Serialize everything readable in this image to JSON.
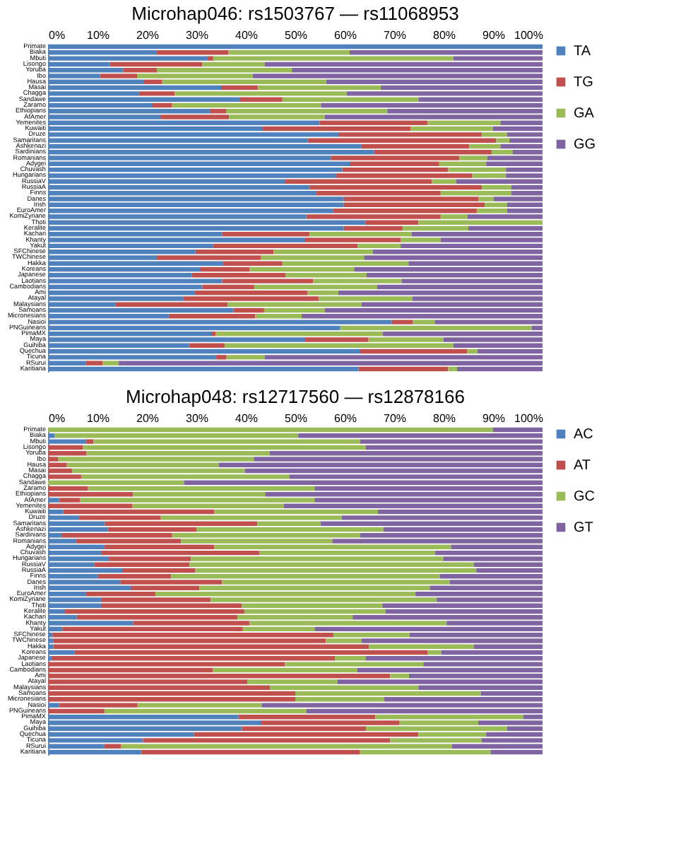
{
  "chart_data": [
    {
      "type": "bar",
      "orientation": "horizontal",
      "stacked": true,
      "title": "Microhap046: rs1503767 — rs11068953",
      "legend": "right",
      "grid": false,
      "categories": [
        "Primate",
        "Biaka",
        "Mbuti",
        "Lisongo",
        "Yoruba",
        "Ibo",
        "Hausa",
        "Masai",
        "Chagga",
        "Sandawe",
        "Zaramo",
        "Ethiopians",
        "AfAmer",
        "Yemenites",
        "Kuwaiti",
        "Druze",
        "Samaritans",
        "Ashkenazi",
        "Sardinians",
        "Romanians",
        "Adygei",
        "Chuvash",
        "Hungarians",
        "RussiaV",
        "RussiaA",
        "Finns",
        "Danes",
        "Irish",
        "EuroAmer",
        "KomiZyriane",
        "Thoti",
        "Keralite",
        "Kachari",
        "Khanty",
        "Yakut",
        "SFChinese",
        "TWChinese",
        "Hakka",
        "Koreans",
        "Japanese",
        "Laotians",
        "Cambodians",
        "Ami",
        "Atayal",
        "Malaysians",
        "Samoans",
        "Micronesians",
        "Nasioi",
        "PNGuineans",
        "PimaMX",
        "Maya",
        "Guihiba",
        "Quechua",
        "Ticuna",
        "RSurui",
        "Karitiana"
      ],
      "xlim": [
        0,
        100
      ],
      "xticks": [
        {
          "value": 0,
          "label": "0%"
        },
        {
          "value": 10,
          "label": "10%"
        },
        {
          "value": 20,
          "label": "20%"
        },
        {
          "value": 30,
          "label": "30%"
        },
        {
          "value": 40,
          "label": "40%"
        },
        {
          "value": 50,
          "label": "50%"
        },
        {
          "value": 60,
          "label": "60%"
        },
        {
          "value": 70,
          "label": "70%"
        },
        {
          "value": 80,
          "label": "80%"
        },
        {
          "value": 90,
          "label": "90%"
        },
        {
          "value": 100,
          "label": "100%"
        }
      ],
      "series": [
        {
          "name": "TA",
          "color": "#4f81bd",
          "values": [
            100,
            22,
            32.3,
            12.5,
            15.2,
            10.5,
            19.3,
            35,
            18.4,
            38.7,
            21,
            32.7,
            22.7,
            54.9,
            43.3,
            58.7,
            52.5,
            63.4,
            65.9,
            57.2,
            61,
            59.5,
            58.3,
            48,
            52.9,
            54.3,
            59.8,
            59.8,
            57.6,
            52.2,
            64.1,
            59.8,
            35.2,
            52,
            33.4,
            29.8,
            22,
            35.4,
            30.7,
            29.1,
            35.2,
            31.2,
            29.6,
            27.4,
            13.6,
            37.5,
            24.4,
            69.5,
            59,
            33,
            52,
            28.5,
            63,
            33.9,
            7.6,
            62.8
          ]
        },
        {
          "name": "TG",
          "color": "#c0504d",
          "values": [
            0,
            14.5,
            1.1,
            18.7,
            6.8,
            7.5,
            3.7,
            7.4,
            7.2,
            8.7,
            4,
            3.3,
            13.9,
            21.8,
            30,
            29,
            38.1,
            21.8,
            23.8,
            26,
            18.1,
            21.4,
            27.5,
            29.6,
            34.8,
            25.1,
            27.2,
            28.5,
            29.1,
            27.2,
            10.8,
            11.9,
            17.7,
            19.3,
            29.2,
            15.8,
            21,
            12,
            10.1,
            18.9,
            18.4,
            10.5,
            22.9,
            27.3,
            22.7,
            6.2,
            17.5,
            4.3,
            0,
            0.9,
            12.8,
            7.2,
            21.8,
            2.2,
            3.4,
            18.1
          ]
        },
        {
          "name": "GA",
          "color": "#9bbb59",
          "values": [
            0,
            24.5,
            48.6,
            12.6,
            27.3,
            23.4,
            33.3,
            24.9,
            34.8,
            27.5,
            30.2,
            32.6,
            19.4,
            14.8,
            16.7,
            5.1,
            2.7,
            6.3,
            4.3,
            5.6,
            9.5,
            11.7,
            6.8,
            4.9,
            6,
            14.3,
            3.1,
            4.5,
            6.1,
            5.4,
            25.1,
            13.3,
            20.6,
            8.1,
            8.7,
            20.1,
            20.9,
            25.5,
            21.1,
            16.4,
            17.9,
            24.8,
            6.2,
            19,
            27.1,
            12.3,
            9.4,
            4.4,
            38.8,
            33.8,
            15.2,
            46.3,
            2,
            7.7,
            3.3,
            1.8
          ]
        },
        {
          "name": "GG",
          "color": "#8064a2",
          "values": [
            0,
            39,
            18,
            56.2,
            50.7,
            58.6,
            43.7,
            32.7,
            39.6,
            25.1,
            44.8,
            31.4,
            44,
            8.5,
            10,
            7.2,
            6.7,
            8.5,
            6,
            11.2,
            11.4,
            7.4,
            7.4,
            17.5,
            6.3,
            6.3,
            9.9,
            7.2,
            7.2,
            15.2,
            0,
            15,
            26.5,
            20.6,
            28.7,
            34.3,
            36.1,
            27.1,
            38.1,
            35.6,
            28.5,
            33.5,
            41.3,
            26.3,
            36.6,
            44,
            48.7,
            21.8,
            2.2,
            32.3,
            20,
            18,
            13.2,
            56.2,
            85.7,
            17.3
          ]
        }
      ]
    },
    {
      "type": "bar",
      "orientation": "horizontal",
      "stacked": true,
      "title": "Microhap048: rs12717560 — rs12878166",
      "legend": "right",
      "grid": false,
      "categories": [
        "Primate",
        "Biaka",
        "Mbuti",
        "Lisongo",
        "Yoruba",
        "Ibo",
        "Hausa",
        "Masai",
        "Chagga",
        "Sandawe",
        "Zaramo",
        "Ethiopians",
        "AfAmer",
        "Yemenites",
        "Kuwaiti",
        "Druze",
        "Samaritans",
        "Ashkenazi",
        "Sardinians",
        "Romanians",
        "Adygei",
        "Chuvash",
        "Hungarians",
        "RussiaV",
        "RussiaA",
        "Finns",
        "Danes",
        "Irish",
        "EuroAmer",
        "KomiZyriane",
        "Thoti",
        "Keralite",
        "Kachari",
        "Khanty",
        "Yakut",
        "SFChinese",
        "TWChinese",
        "Hakka",
        "Koreans",
        "Japanese",
        "Laotians",
        "Cambodians",
        "Ami",
        "Atayal",
        "Malaysians",
        "Samoans",
        "Micronesians",
        "Nasioi",
        "PNGuineans",
        "PimaMX",
        "Maya",
        "Guihiba",
        "Quechua",
        "Ticuna",
        "RSurui",
        "Karitiana"
      ],
      "xlim": [
        0,
        100
      ],
      "xticks": [
        {
          "value": 0,
          "label": "0%"
        },
        {
          "value": 10,
          "label": "10%"
        },
        {
          "value": 20,
          "label": "20%"
        },
        {
          "value": 30,
          "label": "30%"
        },
        {
          "value": 40,
          "label": "40%"
        },
        {
          "value": 50,
          "label": "50%"
        },
        {
          "value": 60,
          "label": "60%"
        },
        {
          "value": 70,
          "label": "70%"
        },
        {
          "value": 80,
          "label": "80%"
        },
        {
          "value": 90,
          "label": "90%"
        },
        {
          "value": 100,
          "label": "100%"
        }
      ],
      "series": [
        {
          "name": "AC",
          "color": "#4f81bd",
          "values": [
            0,
            1.3,
            7.6,
            0,
            0,
            0,
            0,
            0,
            0,
            0,
            0,
            0,
            2.2,
            0,
            3.1,
            6.3,
            11.5,
            12.1,
            2.7,
            5.6,
            11.4,
            10.7,
            12.3,
            9.4,
            15,
            10.1,
            14.6,
            16.7,
            7.6,
            10.7,
            10.7,
            3.3,
            5.8,
            17.2,
            2.9,
            0.9,
            1.1,
            1.1,
            5.4,
            0.7,
            0,
            0,
            0,
            0,
            0,
            0,
            0,
            2.2,
            0,
            38.5,
            43,
            39.2,
            29.5,
            19.2,
            11.4,
            18.8
          ]
        },
        {
          "name": "AT",
          "color": "#c0504d",
          "values": [
            0,
            0,
            1.6,
            7,
            7.8,
            2,
            3.8,
            4.9,
            6.7,
            0,
            8.1,
            17.2,
            4.3,
            17,
            30.5,
            16.5,
            30.8,
            17.9,
            22.4,
            21.3,
            22.2,
            32,
            16.6,
            19.2,
            14.8,
            14.8,
            20.6,
            13.9,
            14.1,
            22.2,
            28.5,
            36.4,
            32.5,
            23.5,
            36.5,
            56.8,
            55.1,
            63.8,
            71.4,
            57.3,
            47.9,
            33.3,
            69.2,
            40.3,
            44.9,
            50,
            50,
            15.9,
            11.4,
            27.7,
            28,
            25.1,
            45.4,
            50,
            3.4,
            44.3
          ]
        },
        {
          "name": "GC",
          "color": "#9bbb59",
          "values": [
            90,
            49.3,
            53.9,
            57.2,
            37,
            39.6,
            30.7,
            34.9,
            42.1,
            27.5,
            45.8,
            26.7,
            47.4,
            30.7,
            33.1,
            36.6,
            12.8,
            37.8,
            38,
            30.6,
            47.9,
            35.6,
            51,
            57.5,
            56.8,
            54.3,
            46,
            46.6,
            52.6,
            45.7,
            28.4,
            28.5,
            23.3,
            39.9,
            14.5,
            15.4,
            7.2,
            21.2,
            2.7,
            6.2,
            28,
            29.2,
            3.8,
            18.2,
            30,
            37.5,
            18,
            25.1,
            40.8,
            29.9,
            16,
            28.5,
            13.7,
            18.5,
            66.9,
            26.4
          ]
        },
        {
          "name": "GT",
          "color": "#8064a2",
          "values": [
            10,
            49.4,
            36.9,
            35.8,
            55.2,
            58.4,
            65.5,
            60.2,
            51.2,
            72.5,
            46.1,
            56.1,
            46.1,
            52.3,
            33.3,
            40.6,
            44.9,
            32.2,
            36.9,
            42.5,
            18.5,
            21.7,
            20.1,
            13.9,
            13.4,
            20.8,
            18.8,
            22.8,
            25.7,
            21.4,
            32.4,
            31.8,
            38.4,
            19.4,
            46.1,
            26.9,
            36.6,
            13.9,
            20.5,
            35.8,
            24.1,
            37.5,
            27,
            41.5,
            25.1,
            12.5,
            32,
            56.8,
            47.8,
            3.9,
            13,
            7.2,
            11.4,
            12.3,
            18.3,
            10.5
          ]
        }
      ]
    }
  ]
}
